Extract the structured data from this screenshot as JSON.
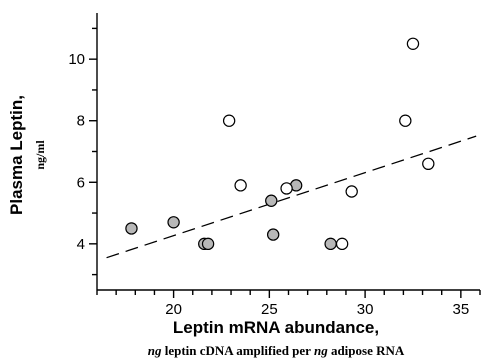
{
  "chart_data": {
    "type": "scatter",
    "xlabel": "Leptin mRNA abundance,",
    "xlabel_sub_parts": [
      "ng",
      " leptin cDNA amplified per ",
      "ng",
      " adipose RNA"
    ],
    "ylabel": "Plasma Leptin,",
    "ylabel_sub": "ng/ml",
    "xlim": [
      16,
      36
    ],
    "ylim": [
      2.5,
      11.5
    ],
    "x_ticks": [
      20,
      25,
      30,
      35
    ],
    "x_tick_labels": [
      "20",
      "25",
      "30",
      "35"
    ],
    "y_ticks": [
      4,
      6,
      8,
      10
    ],
    "y_tick_labels": [
      "4",
      "6",
      "8",
      "10"
    ],
    "grid": false,
    "series": [
      {
        "marker": "filled-circle",
        "color": "#b8b8b8",
        "points": [
          {
            "x": 17.8,
            "y": 4.5
          },
          {
            "x": 20.0,
            "y": 4.7
          },
          {
            "x": 21.6,
            "y": 4.0
          },
          {
            "x": 21.8,
            "y": 4.0
          },
          {
            "x": 25.1,
            "y": 5.4
          },
          {
            "x": 25.2,
            "y": 4.3
          },
          {
            "x": 26.4,
            "y": 5.9
          },
          {
            "x": 28.2,
            "y": 4.0
          }
        ]
      },
      {
        "marker": "open-circle",
        "color": "#ffffff",
        "points": [
          {
            "x": 22.9,
            "y": 8.0
          },
          {
            "x": 23.5,
            "y": 5.9
          },
          {
            "x": 25.9,
            "y": 5.8
          },
          {
            "x": 28.8,
            "y": 4.0
          },
          {
            "x": 29.3,
            "y": 5.7
          },
          {
            "x": 32.1,
            "y": 8.0
          },
          {
            "x": 32.5,
            "y": 10.5
          },
          {
            "x": 33.3,
            "y": 6.6
          }
        ]
      }
    ],
    "trendline": {
      "style": "dashed",
      "x0": 16.5,
      "y0": 3.55,
      "x1": 35.8,
      "y1": 7.5
    }
  }
}
